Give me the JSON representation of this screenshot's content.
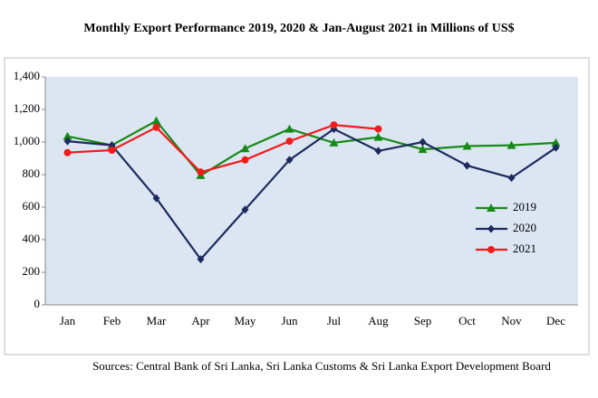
{
  "chart_data": {
    "type": "line",
    "title": "Monthly Export Performance 2019, 2020 & Jan-August 2021 in Millions of US$",
    "source": "Sources: Central Bank of Sri Lanka, Sri Lanka Customs & Sri Lanka Export Development Board",
    "categories": [
      "Jan",
      "Feb",
      "Mar",
      "Apr",
      "May",
      "Jun",
      "Jul",
      "Aug",
      "Sep",
      "Oct",
      "Nov",
      "Dec"
    ],
    "series": [
      {
        "name": "2019",
        "color": "#168a16",
        "marker": "triangle",
        "values": [
          1035,
          980,
          1130,
          795,
          960,
          1080,
          995,
          1030,
          955,
          975,
          980,
          995
        ]
      },
      {
        "name": "2020",
        "color": "#1c2a5e",
        "marker": "diamond",
        "values": [
          1005,
          980,
          655,
          280,
          585,
          890,
          1080,
          945,
          1000,
          855,
          780,
          965
        ]
      },
      {
        "name": "2021",
        "color": "#f21a1a",
        "marker": "circle",
        "values": [
          935,
          950,
          1090,
          815,
          890,
          1005,
          1105,
          1080,
          null,
          null,
          null,
          null
        ]
      }
    ],
    "ylim": [
      0,
      1400
    ],
    "yticks": [
      0,
      200,
      400,
      600,
      800,
      {
        "value": 1000,
        "label": "1,000"
      },
      {
        "value": 1200,
        "label": "1,200"
      },
      {
        "value": 1400,
        "label": "1,400"
      }
    ],
    "legend": "right",
    "plot_background": "#dce6f2"
  }
}
